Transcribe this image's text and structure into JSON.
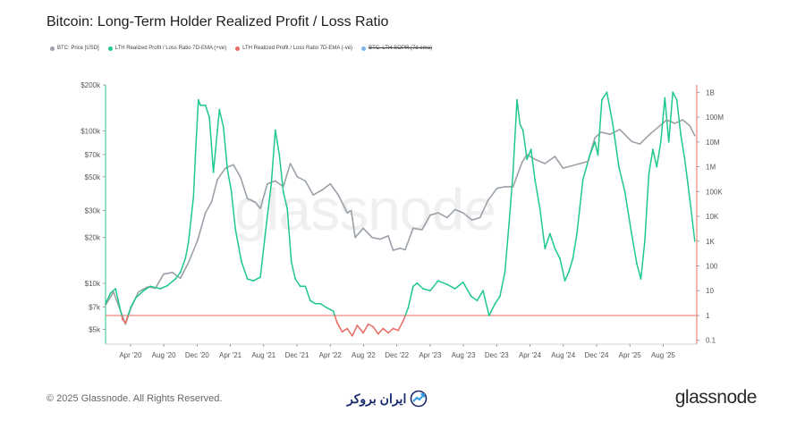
{
  "title": "Bitcoin: Long-Term Holder Realized Profit / Loss Ratio",
  "legend": [
    {
      "label": "BTC: Price [USD]",
      "color": "#9aa1a9",
      "struck": false
    },
    {
      "label": "LTH Realized Profit / Loss Ratio 7D-EMA (+ve)",
      "color": "#1ec98a",
      "struck": false
    },
    {
      "label": "LTH Realized Profit / Loss Ratio 7D-EMA (-ve)",
      "color": "#ec6b63",
      "struck": false
    },
    {
      "label": "BTC: LTH-SOPR (7d ema)",
      "color": "#7fb2e5",
      "struck": true
    }
  ],
  "watermark": "glassnode",
  "footer": {
    "copyright": "© 2025 Glassnode. All Rights Reserved.",
    "partner": "ایران بروکر",
    "logo": "glassnode"
  },
  "chart_data": {
    "type": "line",
    "title": "Bitcoin: Long-Term Holder Realized Profit / Loss Ratio",
    "x_ticks": [
      "Apr '20",
      "Aug '20",
      "Dec '20",
      "Apr '21",
      "Aug '21",
      "Dec '21",
      "Apr '22",
      "Aug '22",
      "Dec '22",
      "Apr '23",
      "Aug '23",
      "Dec '23",
      "Apr '24",
      "Aug '24",
      "Dec '24",
      "Apr '25",
      "Aug '25"
    ],
    "left_axis": {
      "label": "BTC: Price [USD]",
      "scale": "log",
      "ticks": [
        "$200k",
        "$100k",
        "$70k",
        "$50k",
        "$30k",
        "$20k",
        "$10k",
        "$7k",
        "$5k"
      ],
      "tick_values": [
        200000,
        100000,
        70000,
        50000,
        30000,
        20000,
        10000,
        7000,
        5000
      ],
      "range": [
        4000,
        200000
      ]
    },
    "right_axis": {
      "label": "LTH Realized Profit / Loss Ratio",
      "scale": "log",
      "ticks": [
        "1B",
        "100M",
        "10M",
        "1M",
        "100K",
        "10K",
        "1K",
        "100",
        "10",
        "1",
        "0.1"
      ],
      "tick_values": [
        1000000000,
        100000000,
        10000000,
        1000000,
        100000,
        10000,
        1000,
        100,
        10,
        1,
        0.1
      ],
      "range": [
        0.07,
        2000000000
      ]
    },
    "reference_line": {
      "value": 1,
      "axis": "right",
      "color": "#ec6b63"
    },
    "x_range": [
      2020.0,
      2025.92
    ],
    "series": [
      {
        "name": "BTC: Price [USD]",
        "axis": "left",
        "color": "#9aa1a9",
        "x": [
          2020.0,
          2020.08,
          2020.2,
          2020.25,
          2020.33,
          2020.42,
          2020.5,
          2020.58,
          2020.67,
          2020.75,
          2020.83,
          2020.92,
          2021.0,
          2021.06,
          2021.12,
          2021.2,
          2021.28,
          2021.35,
          2021.42,
          2021.5,
          2021.55,
          2021.62,
          2021.7,
          2021.78,
          2021.85,
          2021.92,
          2022.0,
          2022.08,
          2022.17,
          2022.25,
          2022.33,
          2022.42,
          2022.46,
          2022.5,
          2022.58,
          2022.67,
          2022.75,
          2022.83,
          2022.88,
          2022.95,
          2023.0,
          2023.08,
          2023.17,
          2023.25,
          2023.33,
          2023.42,
          2023.5,
          2023.58,
          2023.67,
          2023.75,
          2023.83,
          2023.92,
          2024.0,
          2024.08,
          2024.17,
          2024.22,
          2024.3,
          2024.4,
          2024.5,
          2024.58,
          2024.67,
          2024.75,
          2024.83,
          2024.9,
          2024.96,
          2025.05,
          2025.15,
          2025.27,
          2025.35,
          2025.45,
          2025.55,
          2025.62,
          2025.7,
          2025.78,
          2025.85,
          2025.9
        ],
        "values": [
          7200,
          8800,
          5400,
          6800,
          8800,
          9500,
          9300,
          11500,
          11800,
          10800,
          13700,
          19000,
          29000,
          34000,
          48000,
          57000,
          60000,
          50000,
          36000,
          34000,
          31000,
          45000,
          47000,
          43000,
          61000,
          50000,
          47000,
          38000,
          41000,
          45000,
          38000,
          29000,
          30000,
          20000,
          23000,
          20000,
          19500,
          20500,
          16500,
          17000,
          16600,
          23000,
          22500,
          28000,
          29000,
          27000,
          30500,
          29000,
          26000,
          27000,
          35000,
          42000,
          43000,
          43000,
          62000,
          70000,
          65000,
          61000,
          68000,
          57000,
          59000,
          61000,
          63000,
          90000,
          98000,
          95000,
          102000,
          85000,
          82000,
          95000,
          108000,
          118000,
          112000,
          118000,
          108000,
          93000
        ]
      },
      {
        "name": "LTH Realized Profit / Loss Ratio 7D-EMA",
        "axis": "right",
        "color_positive": "#1ec98a",
        "color_negative": "#ec6b63",
        "x": [
          2020.0,
          2020.05,
          2020.1,
          2020.17,
          2020.2,
          2020.25,
          2020.3,
          2020.38,
          2020.45,
          2020.55,
          2020.62,
          2020.7,
          2020.75,
          2020.8,
          2020.83,
          2020.88,
          2020.9,
          2020.93,
          2020.95,
          2021.0,
          2021.04,
          2021.08,
          2021.14,
          2021.18,
          2021.22,
          2021.26,
          2021.3,
          2021.36,
          2021.42,
          2021.48,
          2021.55,
          2021.6,
          2021.66,
          2021.7,
          2021.74,
          2021.78,
          2021.82,
          2021.86,
          2021.9,
          2021.95,
          2022.0,
          2022.05,
          2022.1,
          2022.15,
          2022.22,
          2022.28,
          2022.32,
          2022.37,
          2022.42,
          2022.47,
          2022.52,
          2022.58,
          2022.63,
          2022.68,
          2022.73,
          2022.78,
          2022.83,
          2022.88,
          2022.93,
          2022.98,
          2023.03,
          2023.08,
          2023.12,
          2023.18,
          2023.25,
          2023.33,
          2023.42,
          2023.5,
          2023.58,
          2023.66,
          2023.72,
          2023.78,
          2023.84,
          2023.9,
          2023.95,
          2024.0,
          2024.04,
          2024.08,
          2024.12,
          2024.15,
          2024.18,
          2024.22,
          2024.26,
          2024.3,
          2024.35,
          2024.4,
          2024.45,
          2024.5,
          2024.55,
          2024.6,
          2024.64,
          2024.68,
          2024.72,
          2024.78,
          2024.85,
          2024.9,
          2024.93,
          2024.97,
          2025.02,
          2025.08,
          2025.14,
          2025.2,
          2025.26,
          2025.32,
          2025.36,
          2025.4,
          2025.44,
          2025.48,
          2025.52,
          2025.56,
          2025.6,
          2025.64,
          2025.68,
          2025.72,
          2025.76,
          2025.8,
          2025.85,
          2025.9
        ],
        "values": [
          3,
          8,
          12,
          0.7,
          0.5,
          2,
          5,
          10,
          15,
          12,
          16,
          30,
          55,
          200,
          900,
          60000,
          3000000,
          500000000,
          300000000,
          300000000,
          100000000,
          600000,
          200000000,
          40000000,
          800000,
          100000,
          3000,
          150,
          30,
          25,
          35,
          2000,
          200000,
          30000000,
          3000000,
          100000,
          20000,
          150,
          30,
          15,
          15,
          4,
          3,
          3,
          2,
          1.5,
          0.5,
          0.22,
          0.3,
          0.15,
          0.4,
          0.2,
          0.45,
          0.35,
          0.18,
          0.3,
          0.2,
          0.3,
          0.25,
          0.6,
          2,
          15,
          20,
          12,
          10,
          25,
          18,
          12,
          22,
          6,
          4,
          10,
          1,
          3,
          6,
          60,
          5000,
          600000,
          500000000,
          50000000,
          30000000,
          2000000,
          5000000,
          300000,
          20000,
          500,
          2000,
          500,
          200,
          25,
          60,
          200,
          2000,
          300000,
          3000000,
          10000000,
          3000000,
          500000000,
          1000000000,
          50000000,
          1000000,
          100000,
          3000,
          120,
          30,
          1000,
          500000,
          5000000,
          1000000,
          10000000,
          600000000,
          10000000,
          1000000000,
          500000000,
          20000000,
          2000000,
          50000,
          1000
        ]
      }
    ]
  }
}
